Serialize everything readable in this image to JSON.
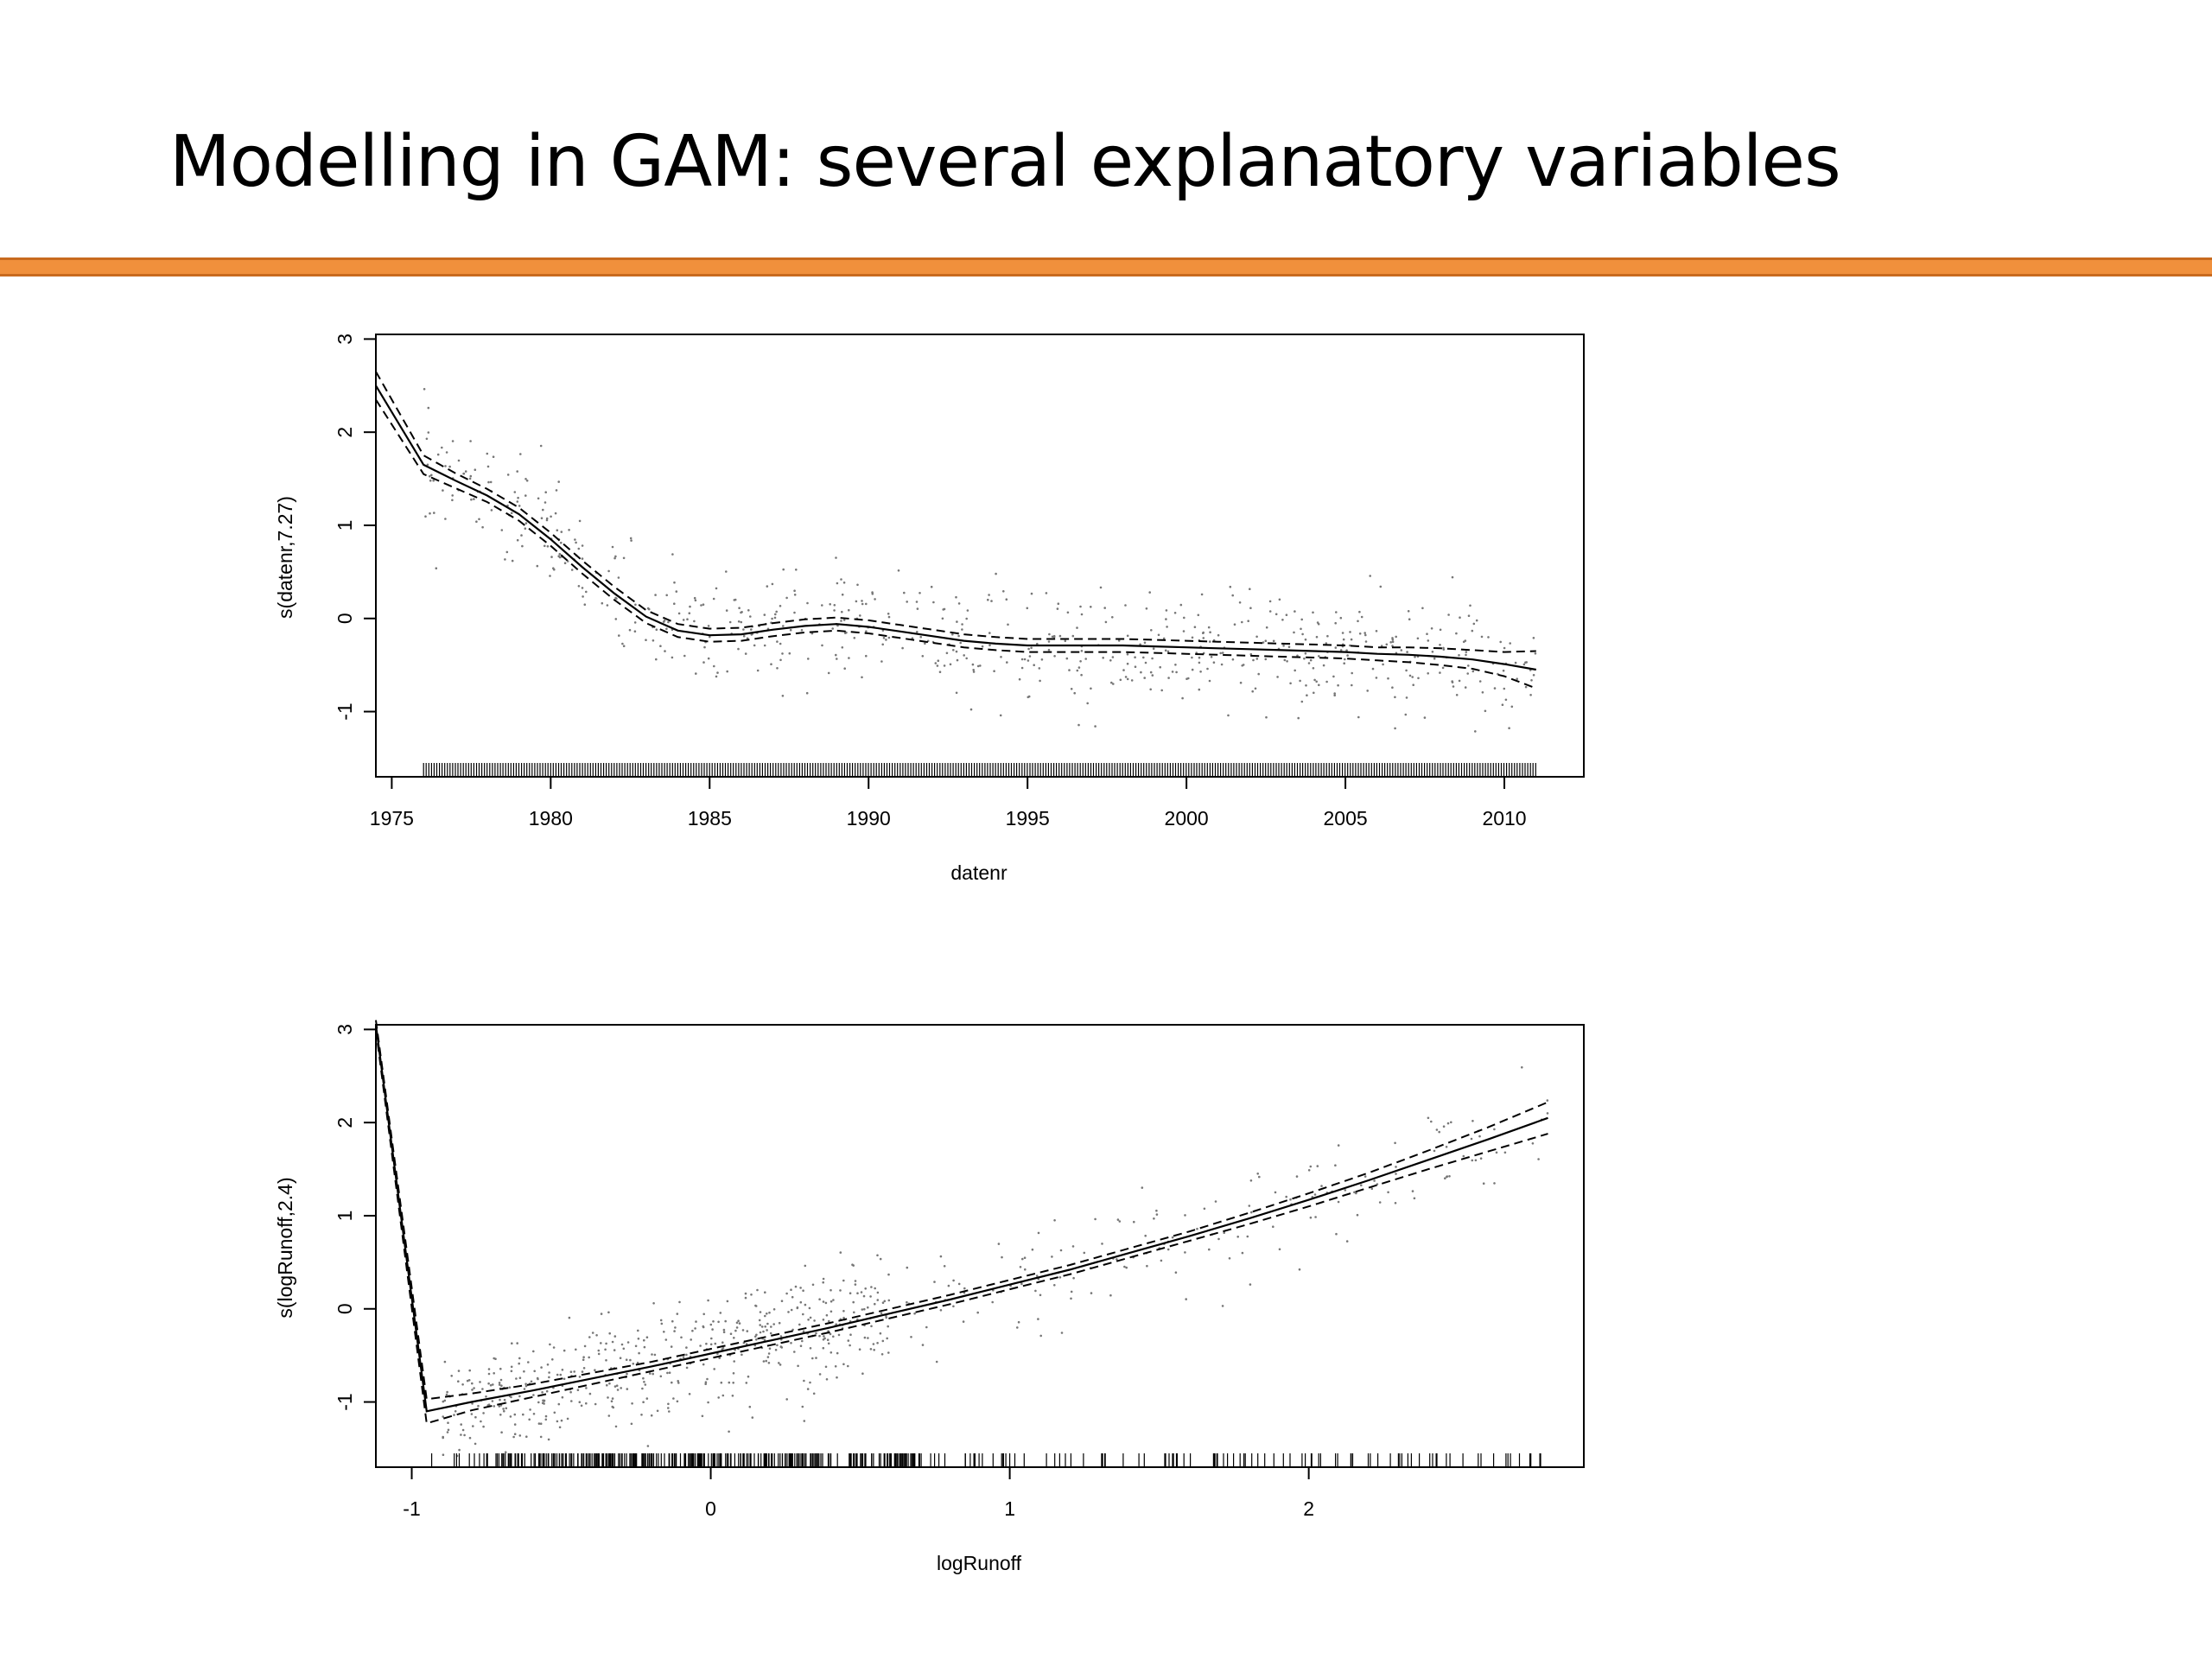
{
  "slide": {
    "title": "Modelling in GAM: several explanatory variables",
    "accent_color": "#f0903c"
  },
  "chart_data": [
    {
      "type": "line",
      "xlabel": "datenr",
      "ylabel": "s(datenr,7.27)",
      "xlim": [
        1974.5,
        2012.5
      ],
      "ylim": [
        -1.7,
        3.05
      ],
      "xticks": [
        1975,
        1980,
        1985,
        1990,
        1995,
        2000,
        2005,
        2010
      ],
      "yticks": [
        -1,
        0,
        1,
        2,
        3
      ],
      "smooth": {
        "x": [
          1974.5,
          1976,
          1977,
          1978,
          1979,
          1980,
          1981,
          1982,
          1983,
          1984,
          1985,
          1986,
          1987,
          1988,
          1989,
          1990,
          1991,
          1992,
          1993,
          1994,
          1995,
          1996,
          1997,
          1998,
          1999,
          2000,
          2001,
          2002,
          2003,
          2004,
          2005,
          2006,
          2007,
          2008,
          2009,
          2010,
          2011
        ],
        "y": [
          2.5,
          1.65,
          1.48,
          1.32,
          1.12,
          0.85,
          0.55,
          0.27,
          0.02,
          -0.13,
          -0.18,
          -0.17,
          -0.12,
          -0.08,
          -0.06,
          -0.09,
          -0.14,
          -0.19,
          -0.24,
          -0.27,
          -0.29,
          -0.29,
          -0.29,
          -0.29,
          -0.3,
          -0.31,
          -0.32,
          -0.33,
          -0.34,
          -0.35,
          -0.36,
          -0.38,
          -0.39,
          -0.41,
          -0.44,
          -0.49,
          -0.55
        ]
      },
      "se_halfwidth": [
        0.15,
        0.1,
        0.08,
        0.07,
        0.07,
        0.07,
        0.07,
        0.07,
        0.07,
        0.07,
        0.07,
        0.07,
        0.07,
        0.07,
        0.07,
        0.07,
        0.07,
        0.07,
        0.07,
        0.07,
        0.07,
        0.07,
        0.07,
        0.07,
        0.07,
        0.07,
        0.07,
        0.07,
        0.07,
        0.07,
        0.07,
        0.07,
        0.08,
        0.09,
        0.1,
        0.13,
        0.2
      ],
      "rug": {
        "start": 1976,
        "end": 2011,
        "step": 0.0833
      },
      "residual_sd": 0.3
    },
    {
      "type": "line",
      "xlabel": "logRunoff",
      "ylabel": "s(logRunoff,2.4)",
      "xlim": [
        -1.12,
        2.92
      ],
      "ylim": [
        -1.7,
        3.05
      ],
      "xticks": [
        -1,
        0,
        1,
        2
      ],
      "yticks": [
        -1,
        0,
        1,
        2,
        3
      ],
      "smooth": {
        "x": [
          -1.12,
          -0.95,
          -0.8,
          -0.6,
          -0.4,
          -0.2,
          0.0,
          0.2,
          0.4,
          0.6,
          0.8,
          1.0,
          1.2,
          1.4,
          1.6,
          1.8,
          2.0,
          2.2,
          2.4,
          2.6,
          2.8
        ],
        "y": [
          3.05,
          -1.1,
          -1.0,
          -0.88,
          -0.75,
          -0.62,
          -0.48,
          -0.34,
          -0.2,
          -0.05,
          0.1,
          0.26,
          0.42,
          0.6,
          0.78,
          0.97,
          1.17,
          1.38,
          1.6,
          1.82,
          2.05
        ]
      },
      "se_halfwidth": [
        0.05,
        0.13,
        0.09,
        0.07,
        0.06,
        0.05,
        0.05,
        0.05,
        0.05,
        0.05,
        0.05,
        0.05,
        0.05,
        0.05,
        0.05,
        0.06,
        0.07,
        0.08,
        0.1,
        0.13,
        0.17
      ],
      "rug": {
        "start": -0.95,
        "end": 2.8,
        "step": 0.008
      },
      "residual_sd": 0.3
    }
  ]
}
